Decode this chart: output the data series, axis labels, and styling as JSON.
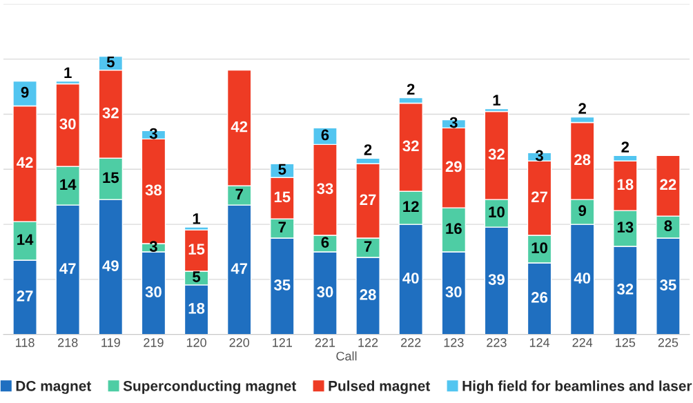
{
  "chart_data": {
    "type": "bar",
    "stacked": true,
    "xlabel": "Call",
    "categories": [
      "118",
      "218",
      "119",
      "219",
      "120",
      "220",
      "121",
      "221",
      "122",
      "222",
      "123",
      "223",
      "124",
      "224",
      "125",
      "225"
    ],
    "series": [
      {
        "name": "DC magnet",
        "color": "#1f6fc0",
        "values": [
          27,
          47,
          49,
          30,
          18,
          47,
          35,
          30,
          28,
          40,
          30,
          39,
          26,
          40,
          32,
          35
        ]
      },
      {
        "name": "Superconducting magnet",
        "color": "#4ecda4",
        "values": [
          14,
          14,
          15,
          3,
          5,
          7,
          7,
          6,
          7,
          12,
          16,
          10,
          10,
          9,
          13,
          8
        ]
      },
      {
        "name": "Pulsed magnet",
        "color": "#ee3b24",
        "values": [
          42,
          30,
          32,
          38,
          15,
          42,
          15,
          33,
          27,
          32,
          29,
          32,
          27,
          28,
          18,
          22
        ]
      },
      {
        "name": "High field for beamlines and laser",
        "color": "#52c5f0",
        "values": [
          9,
          1,
          5,
          3,
          1,
          null,
          5,
          6,
          2,
          2,
          3,
          1,
          3,
          2,
          2,
          null
        ]
      }
    ],
    "ylim": [
      0,
      120
    ],
    "yticks": [
      {
        "value": 0,
        "label": null
      },
      {
        "value": 20,
        "label": null
      },
      {
        "value": 40,
        "label": null
      },
      {
        "value": 60,
        "label": null
      },
      {
        "value": 80,
        "label": null
      },
      {
        "value": 100,
        "label": null
      },
      {
        "value": 120,
        "label": null
      }
    ],
    "tick_labels": "x",
    "grid": "y",
    "data_labels": true,
    "legend": "bottom"
  }
}
